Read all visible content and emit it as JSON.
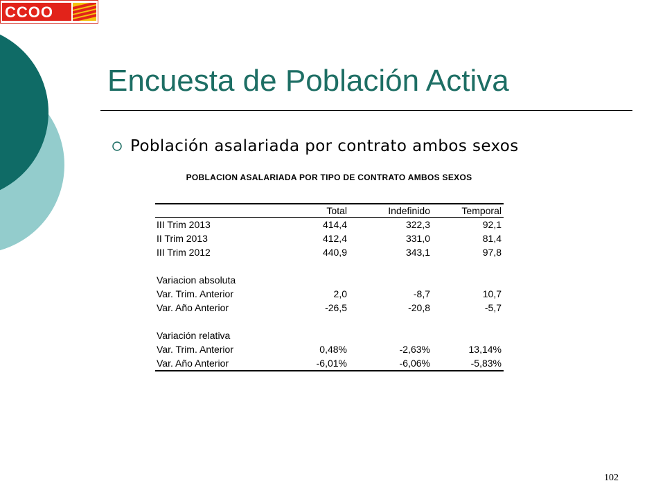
{
  "logo": {
    "text": "CCOO"
  },
  "slide": {
    "title": "Encuesta de Población Activa",
    "bullet": "Población asalariada por contrato ambos sexos",
    "page_number": "102"
  },
  "table": {
    "title": "POBLACION ASALARIADA POR TIPO DE CONTRATO AMBOS SEXOS",
    "headers": [
      "Total",
      "Indefinido",
      "Temporal"
    ],
    "rows": [
      {
        "label": "III Trim 2013",
        "values": [
          "414,4",
          "322,3",
          "92,1"
        ]
      },
      {
        "label": "II Trim 2013",
        "values": [
          "412,4",
          "331,0",
          "81,4"
        ]
      },
      {
        "label": "III Trim 2012",
        "values": [
          "440,9",
          "343,1",
          "97,8"
        ]
      },
      {
        "label": "",
        "values": [
          "",
          "",
          ""
        ]
      },
      {
        "label": "Variacion absoluta",
        "values": [
          "",
          "",
          ""
        ]
      },
      {
        "label": "Var. Trim. Anterior",
        "values": [
          "2,0",
          "-8,7",
          "10,7"
        ]
      },
      {
        "label": "Var. Año Anterior",
        "values": [
          "-26,5",
          "-20,8",
          "-5,7"
        ]
      },
      {
        "label": "",
        "values": [
          "",
          "",
          ""
        ]
      },
      {
        "label": "Variación relativa",
        "values": [
          "",
          "",
          ""
        ]
      },
      {
        "label": "Var. Trim. Anterior",
        "values": [
          "0,48%",
          "-2,63%",
          "13,14%"
        ]
      },
      {
        "label": "Var. Año Anterior",
        "values": [
          "-6,01%",
          "-6,06%",
          "-5,83%"
        ]
      }
    ]
  },
  "colors": {
    "title": "#1d6e64",
    "circle_dark": "#0f6b66",
    "circle_light": "#93cccc",
    "logo_red": "#e2231a"
  }
}
